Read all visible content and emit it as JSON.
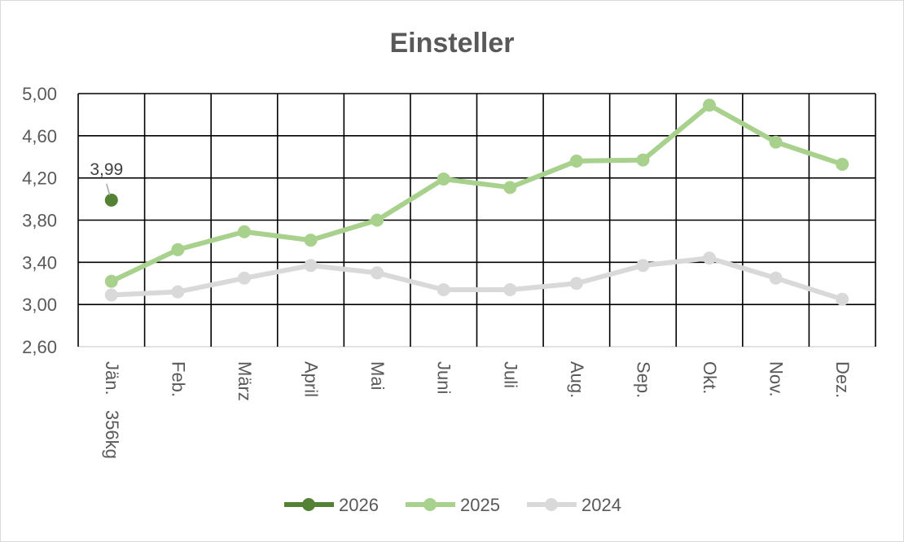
{
  "chart_data": {
    "type": "line",
    "title": "Einsteller",
    "categories": [
      "Jän.   356kg",
      "Feb.",
      "März",
      "April",
      "Mai",
      "Juni",
      "Juli",
      "Aug.",
      "Sep.",
      "Okt.",
      "Nov.",
      "Dez."
    ],
    "ylim": [
      2.6,
      5.0
    ],
    "yticks": [
      "2,60",
      "3,00",
      "3,40",
      "3,80",
      "4,20",
      "4,60",
      "5,00"
    ],
    "ytick_values": [
      2.6,
      3.0,
      3.4,
      3.8,
      4.2,
      4.6,
      5.0
    ],
    "grid": true,
    "legend_position": "bottom",
    "series": [
      {
        "name": "2026",
        "color": "#548235",
        "values": [
          3.99,
          null,
          null,
          null,
          null,
          null,
          null,
          null,
          null,
          null,
          null,
          null
        ]
      },
      {
        "name": "2025",
        "color": "#a9d18e",
        "values": [
          3.22,
          3.52,
          3.69,
          3.61,
          3.8,
          4.19,
          4.11,
          4.36,
          4.37,
          4.89,
          4.54,
          4.33
        ]
      },
      {
        "name": "2024",
        "color": "#d9d9d9",
        "values": [
          3.09,
          3.12,
          3.25,
          3.37,
          3.3,
          3.14,
          3.14,
          3.2,
          3.37,
          3.44,
          3.25,
          3.05
        ]
      }
    ],
    "annotations": [
      {
        "series": "2026",
        "index": 0,
        "text": "3,99"
      }
    ]
  }
}
